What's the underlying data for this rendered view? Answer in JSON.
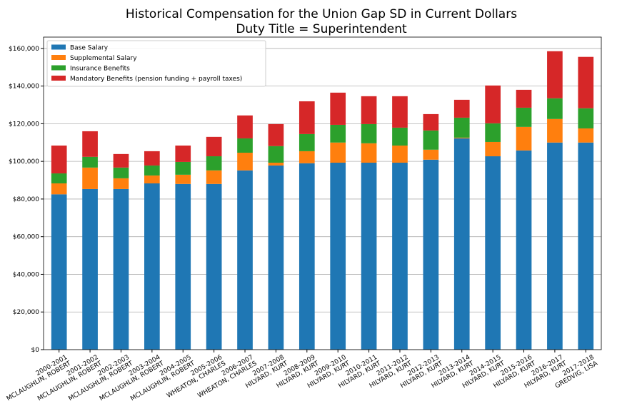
{
  "chart_data": {
    "type": "stacked_bar",
    "title": [
      "Historical Compensation for the Union Gap SD in Current Dollars",
      "Duty Title = Superintendent"
    ],
    "categories": [
      [
        "2000-2001",
        "MCLAUGHLIN, ROBERT"
      ],
      [
        "2001-2002",
        "MCLAUGHLIN, ROBERT"
      ],
      [
        "2002-2003",
        "MCLAUGHLIN, ROBERT"
      ],
      [
        "2003-2004",
        "MCLAUGHLIN, ROBERT"
      ],
      [
        "2004-2005",
        "MCLAUGHLIN, ROBERT"
      ],
      [
        "2005-2006",
        "WHEATON, CHARLES"
      ],
      [
        "2006-2007",
        "WHEATON, CHARLES"
      ],
      [
        "2007-2008",
        "HILYARD, KURT"
      ],
      [
        "2008-2009",
        "HILYARD, KURT"
      ],
      [
        "2009-2010",
        "HILYARD, KURT"
      ],
      [
        "2010-2011",
        "HILYARD, KURT"
      ],
      [
        "2011-2012",
        "HILYARD, KURT"
      ],
      [
        "2012-2013",
        "HILYARD, KURT"
      ],
      [
        "2013-2014",
        "HILYARD, KURT"
      ],
      [
        "2014-2015",
        "HILYARD, KURT"
      ],
      [
        "2015-2016",
        "HILYARD, KURT"
      ],
      [
        "2016-2017",
        "HILYARD, KURT"
      ],
      [
        "2017-2018",
        "GREDVIG, LISA"
      ]
    ],
    "series": [
      {
        "name": "Base Salary",
        "color": "#1f77b4",
        "values": [
          82500,
          85300,
          85300,
          88300,
          88000,
          88000,
          95200,
          97800,
          99000,
          99300,
          99300,
          99300,
          100900,
          112200,
          102700,
          105800,
          110000,
          110000
        ]
      },
      {
        "name": "Supplemental Salary",
        "color": "#ff7f0e",
        "values": [
          5800,
          11400,
          5700,
          4200,
          4900,
          7200,
          9400,
          1500,
          6400,
          10700,
          10300,
          9100,
          5300,
          400,
          7600,
          12500,
          12500,
          7500
        ]
      },
      {
        "name": "Insurance Benefits",
        "color": "#2ca02c",
        "values": [
          5300,
          5700,
          5700,
          5300,
          6800,
          7500,
          7600,
          8800,
          9100,
          9400,
          10200,
          9500,
          10200,
          10600,
          9900,
          10200,
          11000,
          10700
        ]
      },
      {
        "name": "Mandatory Benefits (pension funding + payroll taxes)",
        "color": "#d62728",
        "values": [
          14800,
          13600,
          7200,
          7600,
          8700,
          10300,
          12200,
          11700,
          17400,
          17100,
          14800,
          16700,
          8700,
          9500,
          20100,
          9500,
          25000,
          27300
        ]
      }
    ],
    "ylim": [
      0,
      166000
    ],
    "yticks": [
      {
        "value": 0,
        "label": "$0"
      },
      {
        "value": 20000,
        "label": "$20,000"
      },
      {
        "value": 40000,
        "label": "$40,000"
      },
      {
        "value": 60000,
        "label": "$60,000"
      },
      {
        "value": 80000,
        "label": "$80,000"
      },
      {
        "value": 100000,
        "label": "$100,000"
      },
      {
        "value": 120000,
        "label": "$120,000"
      },
      {
        "value": 140000,
        "label": "$140,000"
      },
      {
        "value": 160000,
        "label": "$160,000"
      }
    ],
    "grid": true,
    "legend": "upper left"
  }
}
